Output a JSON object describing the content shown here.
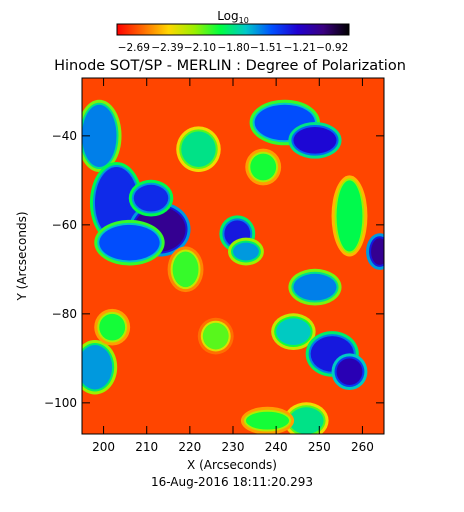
{
  "chart_data": {
    "type": "heatmap",
    "title": "Hinode SOT/SP - MERLIN : Degree of Polarization",
    "xlabel": "X (Arcseconds)",
    "ylabel": "Y (Arcseconds)",
    "xlim": [
      195,
      265
    ],
    "ylim": [
      -107,
      -27
    ],
    "x_ticks": [
      200,
      210,
      220,
      230,
      240,
      250,
      260
    ],
    "y_ticks": [
      -40,
      -60,
      -80,
      -100
    ],
    "colorbar": {
      "label_main": "Log",
      "label_sub": "10",
      "ticks": [
        "-2.69",
        "-2.39",
        "-2.10",
        "-1.80",
        "-1.51",
        "-1.21",
        "-0.92"
      ],
      "range": [
        -2.84,
        -0.77
      ],
      "colormap": [
        "#ff0000",
        "#ff6a00",
        "#ffd700",
        "#9cf000",
        "#00ff40",
        "#00c8c8",
        "#0050ff",
        "#2000d0",
        "#3a0080",
        "#000000"
      ]
    },
    "timestamp": "16-Aug-2016 18:11:20.293",
    "background_color": "#ff4500",
    "regions": [
      {
        "x": 199,
        "y": -40,
        "rx": 4,
        "ry": 7,
        "value": -1.55
      },
      {
        "x": 203,
        "y": -55,
        "rx": 5,
        "ry": 8,
        "value": -1.35
      },
      {
        "x": 213,
        "y": -61,
        "rx": 6,
        "ry": 5,
        "value": -1.05
      },
      {
        "x": 211,
        "y": -54,
        "rx": 4,
        "ry": 3,
        "value": -1.35
      },
      {
        "x": 206,
        "y": -64,
        "rx": 7,
        "ry": 4,
        "value": -1.45
      },
      {
        "x": 222,
        "y": -43,
        "rx": 4,
        "ry": 4,
        "value": -1.8
      },
      {
        "x": 231,
        "y": -62,
        "rx": 3,
        "ry": 3,
        "value": -1.3
      },
      {
        "x": 233,
        "y": -66,
        "rx": 3,
        "ry": 2,
        "value": -1.6
      },
      {
        "x": 242,
        "y": -37,
        "rx": 7,
        "ry": 4,
        "value": -1.45
      },
      {
        "x": 249,
        "y": -41,
        "rx": 5,
        "ry": 3,
        "value": -1.25
      },
      {
        "x": 257,
        "y": -58,
        "rx": 3,
        "ry": 8,
        "value": -1.9
      },
      {
        "x": 264,
        "y": -66,
        "rx": 2,
        "ry": 3,
        "value": -1.05
      },
      {
        "x": 249,
        "y": -74,
        "rx": 5,
        "ry": 3,
        "value": -1.55
      },
      {
        "x": 244,
        "y": -84,
        "rx": 4,
        "ry": 3,
        "value": -1.7
      },
      {
        "x": 253,
        "y": -89,
        "rx": 5,
        "ry": 4,
        "value": -1.3
      },
      {
        "x": 257,
        "y": -93,
        "rx": 3,
        "ry": 3,
        "value": -1.15
      },
      {
        "x": 247,
        "y": -104,
        "rx": 4,
        "ry": 3,
        "value": -1.8
      },
      {
        "x": 198,
        "y": -92,
        "rx": 4,
        "ry": 5,
        "value": -1.6
      },
      {
        "x": 202,
        "y": -83,
        "rx": 3,
        "ry": 3,
        "value": -1.95
      },
      {
        "x": 238,
        "y": -104,
        "rx": 5,
        "ry": 2,
        "value": -1.95
      },
      {
        "x": 219,
        "y": -70,
        "rx": 3,
        "ry": 4,
        "value": -2.0
      },
      {
        "x": 226,
        "y": -85,
        "rx": 3,
        "ry": 3,
        "value": -2.05
      },
      {
        "x": 237,
        "y": -47,
        "rx": 3,
        "ry": 3,
        "value": -1.95
      }
    ]
  }
}
